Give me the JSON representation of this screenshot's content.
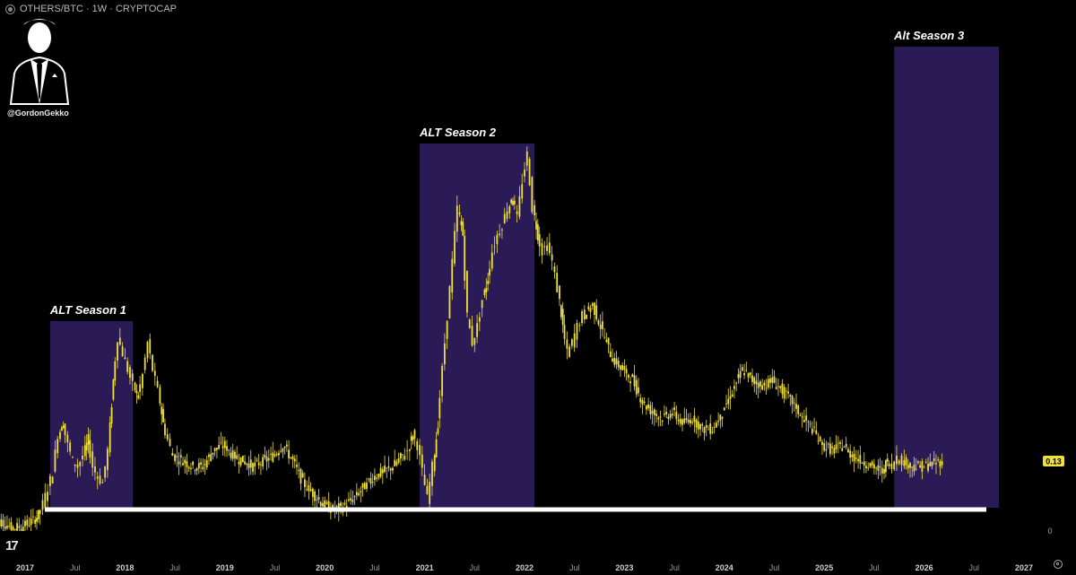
{
  "header": {
    "symbol": "OTHERS/BTC · 1W · CRYPTOCAP"
  },
  "author": {
    "handle": "@GordonGekko"
  },
  "logo": {
    "name": "tradingview-logo",
    "text": "17"
  },
  "chart_data": {
    "type": "line",
    "style": "candlestick",
    "color": "#f0e03a",
    "x_unit": "year",
    "xlim": [
      2017,
      2027
    ],
    "ylim": [
      0,
      0.9
    ],
    "x_ticks": [
      {
        "label": "2017",
        "x": 2017.0,
        "bold": true
      },
      {
        "label": "Jul",
        "x": 2017.5,
        "bold": false
      },
      {
        "label": "2018",
        "x": 2018.0,
        "bold": true
      },
      {
        "label": "Jul",
        "x": 2018.5,
        "bold": false
      },
      {
        "label": "2019",
        "x": 2019.0,
        "bold": true
      },
      {
        "label": "Jul",
        "x": 2019.5,
        "bold": false
      },
      {
        "label": "2020",
        "x": 2020.0,
        "bold": true
      },
      {
        "label": "Jul",
        "x": 2020.5,
        "bold": false
      },
      {
        "label": "2021",
        "x": 2021.0,
        "bold": true
      },
      {
        "label": "Jul",
        "x": 2021.5,
        "bold": false
      },
      {
        "label": "2022",
        "x": 2022.0,
        "bold": true
      },
      {
        "label": "Jul",
        "x": 2022.5,
        "bold": false
      },
      {
        "label": "2023",
        "x": 2023.0,
        "bold": true
      },
      {
        "label": "Jul",
        "x": 2023.5,
        "bold": false
      },
      {
        "label": "2024",
        "x": 2024.0,
        "bold": true
      },
      {
        "label": "Jul",
        "x": 2024.5,
        "bold": false
      },
      {
        "label": "2025",
        "x": 2025.0,
        "bold": true
      },
      {
        "label": "Jul",
        "x": 2025.5,
        "bold": false
      },
      {
        "label": "2026",
        "x": 2026.0,
        "bold": true
      },
      {
        "label": "Jul",
        "x": 2026.5,
        "bold": false
      },
      {
        "label": "2027",
        "x": 2027.0,
        "bold": true
      }
    ],
    "y_ticks": [
      {
        "label": "0",
        "value": 0
      }
    ],
    "last_value": 0.13,
    "last_value_label": "0.13",
    "support_level": 0.04,
    "seasons": [
      {
        "label": "ALT Season 1",
        "x0": 2017.25,
        "x1": 2018.08,
        "top": 0.39
      },
      {
        "label": "ALT Season 2",
        "x0": 2020.95,
        "x1": 2022.1,
        "top": 0.72
      },
      {
        "label": "Alt Season 3",
        "x0": 2025.7,
        "x1": 2026.75,
        "top": 0.9
      }
    ],
    "series": [
      {
        "x": [
          2016.7,
          2016.8,
          2016.9,
          2017.0,
          2017.1,
          2017.15,
          2017.2,
          2017.25,
          2017.3,
          2017.35,
          2017.4,
          2017.45,
          2017.5,
          2017.55,
          2017.6,
          2017.65,
          2017.7,
          2017.75,
          2017.8,
          2017.85,
          2017.9,
          2017.95,
          2018.0,
          2018.05,
          2018.1,
          2018.15,
          2018.2,
          2018.25,
          2018.3,
          2018.35,
          2018.4,
          2018.45,
          2018.5,
          2018.6,
          2018.7,
          2018.8,
          2018.9,
          2019.0,
          2019.1,
          2019.2,
          2019.3,
          2019.4,
          2019.5,
          2019.6,
          2019.7,
          2019.8,
          2019.9,
          2020.0,
          2020.1,
          2020.2,
          2020.3,
          2020.4,
          2020.5,
          2020.6,
          2020.7,
          2020.8,
          2020.85,
          2020.9,
          2020.95,
          2021.0,
          2021.05,
          2021.1,
          2021.15,
          2021.2,
          2021.25,
          2021.3,
          2021.35,
          2021.4,
          2021.45,
          2021.5,
          2021.55,
          2021.6,
          2021.65,
          2021.7,
          2021.75,
          2021.8,
          2021.85,
          2021.9,
          2021.95,
          2022.0,
          2022.05,
          2022.1,
          2022.15,
          2022.2,
          2022.25,
          2022.3,
          2022.35,
          2022.4,
          2022.45,
          2022.5,
          2022.55,
          2022.6,
          2022.7,
          2022.8,
          2022.9,
          2023.0,
          2023.1,
          2023.2,
          2023.3,
          2023.4,
          2023.5,
          2023.6,
          2023.7,
          2023.8,
          2023.9,
          2024.0,
          2024.1,
          2024.2,
          2024.3,
          2024.4,
          2024.5,
          2024.6,
          2024.7,
          2024.8,
          2024.9,
          2025.0,
          2025.1,
          2025.2,
          2025.3,
          2025.4,
          2025.5,
          2025.6,
          2025.65,
          2025.7,
          2025.75,
          2025.8,
          2025.9,
          2026.0,
          2026.1,
          2026.2
        ],
        "y": [
          0.025,
          0.015,
          0.005,
          0.01,
          0.02,
          0.03,
          0.05,
          0.08,
          0.11,
          0.18,
          0.2,
          0.16,
          0.13,
          0.12,
          0.14,
          0.17,
          0.12,
          0.1,
          0.09,
          0.15,
          0.28,
          0.36,
          0.33,
          0.3,
          0.27,
          0.25,
          0.29,
          0.35,
          0.3,
          0.26,
          0.2,
          0.17,
          0.14,
          0.13,
          0.12,
          0.12,
          0.15,
          0.16,
          0.14,
          0.13,
          0.12,
          0.13,
          0.14,
          0.16,
          0.13,
          0.09,
          0.07,
          0.05,
          0.04,
          0.045,
          0.06,
          0.08,
          0.1,
          0.11,
          0.12,
          0.14,
          0.15,
          0.18,
          0.16,
          0.11,
          0.06,
          0.12,
          0.2,
          0.3,
          0.4,
          0.5,
          0.6,
          0.55,
          0.4,
          0.35,
          0.38,
          0.43,
          0.47,
          0.52,
          0.55,
          0.57,
          0.6,
          0.62,
          0.58,
          0.65,
          0.7,
          0.6,
          0.55,
          0.52,
          0.53,
          0.5,
          0.45,
          0.38,
          0.33,
          0.35,
          0.38,
          0.4,
          0.42,
          0.37,
          0.32,
          0.3,
          0.28,
          0.24,
          0.22,
          0.21,
          0.22,
          0.2,
          0.21,
          0.19,
          0.19,
          0.22,
          0.26,
          0.3,
          0.28,
          0.27,
          0.28,
          0.26,
          0.24,
          0.21,
          0.19,
          0.16,
          0.15,
          0.16,
          0.14,
          0.13,
          0.12,
          0.11,
          0.13,
          0.12,
          0.14,
          0.13,
          0.12,
          0.12,
          0.125,
          0.13
        ]
      }
    ]
  }
}
